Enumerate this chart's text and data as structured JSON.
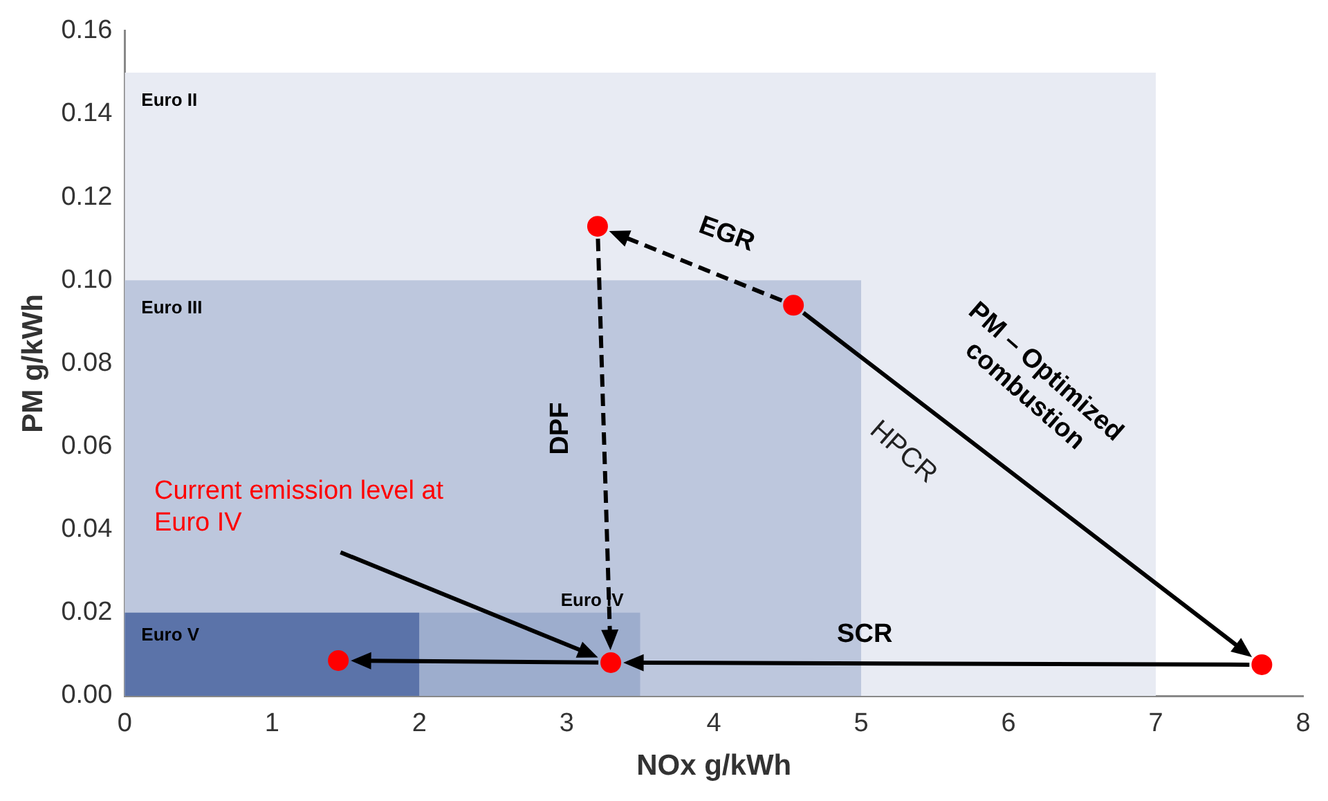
{
  "chart_data": {
    "type": "scatter",
    "xlabel": "NOx g/kWh",
    "ylabel": "PM g/kWh",
    "xlim": [
      0,
      8
    ],
    "xticks": [
      0,
      1,
      2,
      3,
      4,
      5,
      6,
      7,
      8
    ],
    "ylim": [
      0,
      0.16
    ],
    "yticks": [
      {
        "value": 0,
        "label": "0.00"
      },
      {
        "value": 0.02,
        "label": "0.02"
      },
      {
        "value": 0.04,
        "label": "0.04"
      },
      {
        "value": 0.06,
        "label": "0.06"
      },
      {
        "value": 0.08,
        "label": "0.08"
      },
      {
        "value": 0.1,
        "label": "0.10"
      },
      {
        "value": 0.12,
        "label": "0.12"
      },
      {
        "value": 0.14,
        "label": "0.14"
      },
      {
        "value": 0.16,
        "label": "0.16"
      }
    ],
    "grid": false,
    "legend": false,
    "series": [
      {
        "name": "Euro II",
        "type": "area",
        "color": "#e8ebf3",
        "x": [
          0,
          7
        ],
        "values": [
          0.15,
          0.15
        ]
      },
      {
        "name": "Euro III",
        "type": "area",
        "color": "#bdc7dd",
        "x": [
          0,
          5
        ],
        "values": [
          0.1,
          0.1
        ]
      },
      {
        "name": "Euro IV",
        "type": "area",
        "color": "#9dadcd",
        "x": [
          0,
          3.5
        ],
        "values": [
          0.02,
          0.02
        ]
      },
      {
        "name": "Euro V",
        "type": "area",
        "color": "#5b73a9",
        "x": [
          0,
          2
        ],
        "values": [
          0.02,
          0.02
        ]
      },
      {
        "color": "#ff0000",
        "x": [
          7.72,
          4.54,
          3.21,
          3.3,
          1.45
        ],
        "values": [
          0.0075,
          0.094,
          0.113,
          0.008,
          0.0085
        ]
      }
    ],
    "annotations": [
      "EGR",
      "DPF",
      "SCR",
      "PM – Optimized combustion",
      "HPCR",
      "Current emission level at Euro IV"
    ]
  }
}
